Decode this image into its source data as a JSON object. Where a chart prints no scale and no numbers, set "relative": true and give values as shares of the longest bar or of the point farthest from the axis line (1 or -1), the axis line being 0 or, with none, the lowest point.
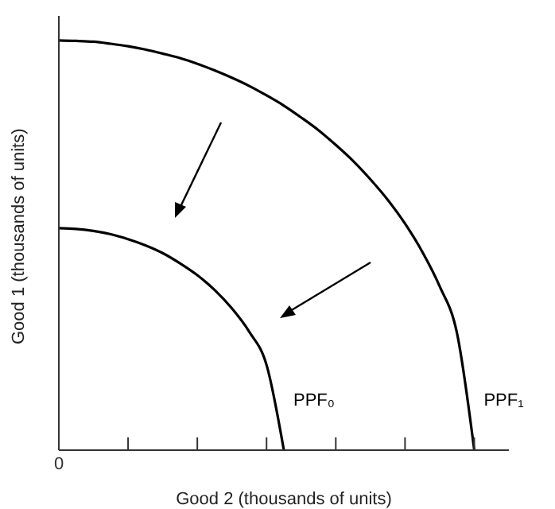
{
  "chart_data": {
    "type": "line",
    "relative": true,
    "xlabel": "Good 2 (thousands of units)",
    "ylabel": "Good 1 (thousands of units)",
    "annotations": [
      "0"
    ],
    "categories": [
      null,
      null,
      null,
      null,
      null,
      null,
      null,
      null,
      null,
      null,
      null,
      null,
      null,
      null,
      null,
      null,
      null,
      null,
      null,
      null,
      null,
      null,
      null,
      null,
      null,
      null,
      null
    ],
    "series": [
      {
        "name": "PPF₀",
        "color": "#000000",
        "values": [
          0.542,
          0.54,
          0.535,
          0.527,
          0.515,
          0.5,
          0.481,
          0.456,
          0.427,
          0.391,
          0.346,
          0.289,
          0.208,
          0,
          null,
          null,
          null,
          null,
          null,
          null,
          null,
          null,
          null,
          null,
          null,
          null,
          null
        ]
      },
      {
        "name": "PPF₁",
        "color": "#000000",
        "values": [
          1,
          0.999,
          0.997,
          0.992,
          0.986,
          0.978,
          0.968,
          0.957,
          0.943,
          0.927,
          0.909,
          0.889,
          0.866,
          0.841,
          0.812,
          0.781,
          0.745,
          0.706,
          0.661,
          0.611,
          0.553,
          0.484,
          0.4,
          0.286,
          0,
          null,
          null
        ]
      }
    ],
    "marker": "none",
    "line_style": "solid",
    "grid": false,
    "legend": false
  }
}
